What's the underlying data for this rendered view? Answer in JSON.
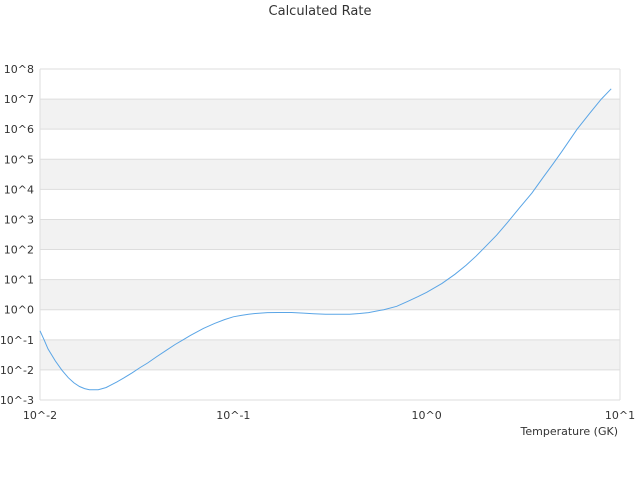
{
  "chart_data": {
    "type": "line",
    "title": "Calculated Rate",
    "xlabel": "Temperature (GK)",
    "ylabel": "",
    "xscale": "log",
    "yscale": "log",
    "xlim": [
      0.01,
      10
    ],
    "ylim": [
      0.001,
      100000000
    ],
    "x_tick_labels": [
      "10^-2",
      "10^-1",
      "10^0",
      "10^1"
    ],
    "y_tick_labels": [
      "10^8",
      "10^7",
      "10^6",
      "10^5",
      "10^4",
      "10^3",
      "10^2",
      "10^1",
      "10^0",
      "10^-1",
      "10^-2",
      "10^-3"
    ],
    "grid": "alternating horizontal bands",
    "legend": "none",
    "colors": {
      "line": "#5aa5e6",
      "band": "#f2f2f2",
      "gridline": "#dddddd"
    },
    "series": [
      {
        "x": [
          0.01,
          0.0105,
          0.011,
          0.012,
          0.013,
          0.014,
          0.015,
          0.016,
          0.017,
          0.018,
          0.019,
          0.02,
          0.021,
          0.022,
          0.023,
          0.025,
          0.027,
          0.03,
          0.033,
          0.036,
          0.04,
          0.045,
          0.05,
          0.055,
          0.06,
          0.07,
          0.08,
          0.09,
          0.1,
          0.11,
          0.12,
          0.13,
          0.15,
          0.17,
          0.2,
          0.23,
          0.26,
          0.3,
          0.35,
          0.4,
          0.45,
          0.5,
          0.6,
          0.7,
          0.8,
          0.9,
          1.0,
          1.2,
          1.4,
          1.6,
          1.8,
          2.0,
          2.3,
          2.6,
          3.0,
          3.5,
          4.0,
          4.5,
          5.0,
          6.0,
          7.0,
          8.0,
          9.0
        ],
        "y": [
          0.2,
          0.1,
          0.05,
          0.02,
          0.0097,
          0.0055,
          0.0037,
          0.0028,
          0.0024,
          0.0022,
          0.0022,
          0.0022,
          0.0024,
          0.0026,
          0.003,
          0.004,
          0.0053,
          0.008,
          0.012,
          0.017,
          0.027,
          0.045,
          0.07,
          0.1,
          0.14,
          0.24,
          0.35,
          0.47,
          0.58,
          0.65,
          0.71,
          0.75,
          0.8,
          0.81,
          0.81,
          0.77,
          0.74,
          0.71,
          0.71,
          0.71,
          0.75,
          0.8,
          1.0,
          1.3,
          1.9,
          2.7,
          3.8,
          7.5,
          15,
          30,
          60,
          120,
          300,
          750,
          2300,
          7500,
          25000,
          70000,
          180000,
          1000000,
          3500000,
          10000000,
          22000000
        ]
      }
    ]
  }
}
